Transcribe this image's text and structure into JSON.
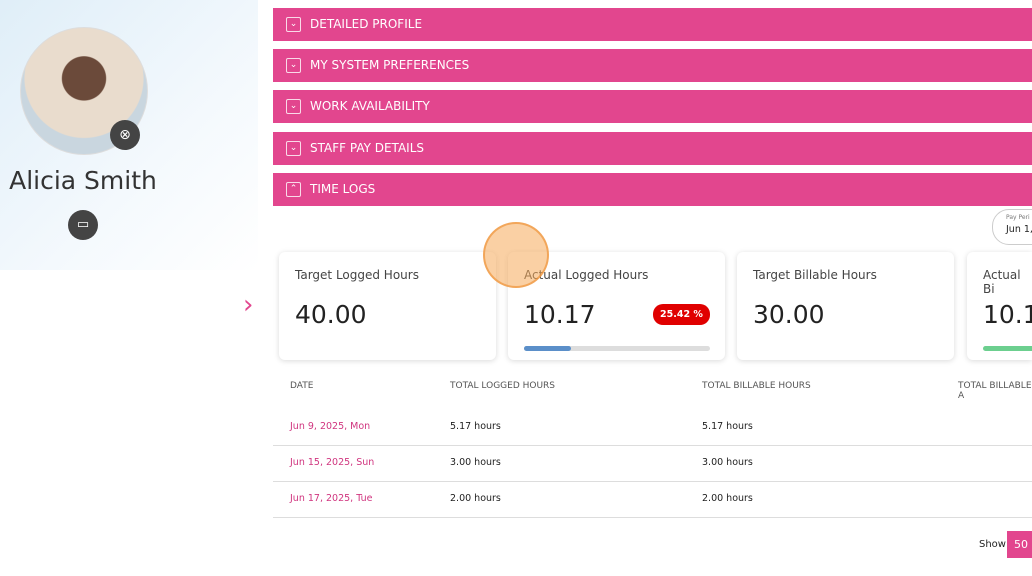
{
  "profile": {
    "name": "Alicia Smith"
  },
  "sections": [
    "DETAILED PROFILE",
    "MY SYSTEM PREFERENCES",
    "WORK AVAILABILITY",
    "STAFF PAY DETAILS",
    "TIME LOGS"
  ],
  "pay_period": {
    "label": "Pay Peri",
    "value": "Jun 1,"
  },
  "cards": [
    {
      "label": "Target Logged Hours",
      "value": "40.00"
    },
    {
      "label": "Actual Logged Hours",
      "value": "10.17",
      "badge": "25.42 %"
    },
    {
      "label": "Target Billable Hours",
      "value": "30.00"
    },
    {
      "label": "Actual Bi",
      "value": "10.1"
    }
  ],
  "table": {
    "headers": [
      "DATE",
      "TOTAL LOGGED HOURS",
      "TOTAL BILLABLE HOURS",
      "TOTAL BILLABLE A"
    ],
    "rows": [
      [
        "Jun 9, 2025, Mon",
        "5.17 hours",
        "5.17 hours"
      ],
      [
        "Jun 15, 2025, Sun",
        "3.00 hours",
        "3.00 hours"
      ],
      [
        "Jun 17, 2025, Tue",
        "2.00 hours",
        "2.00 hours"
      ]
    ]
  },
  "pagination": {
    "show": "Show",
    "page_size": "50"
  }
}
